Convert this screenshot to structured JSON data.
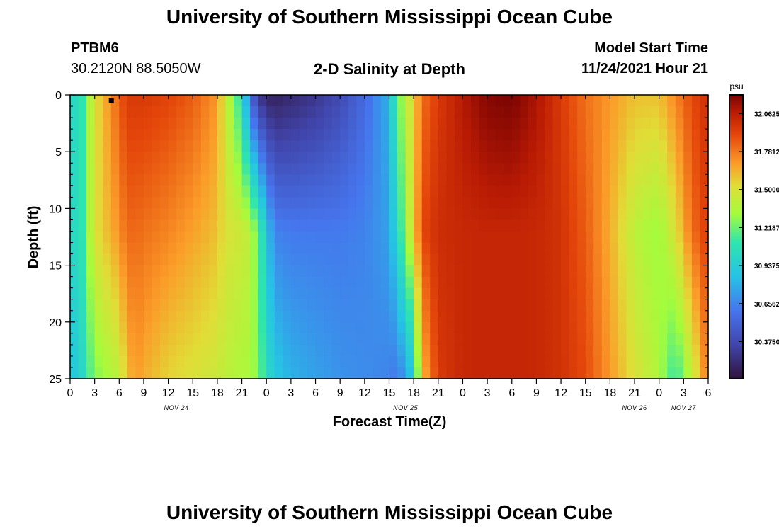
{
  "page": {
    "title": "University of Southern Mississippi Ocean Cube",
    "footer_title": "University of Southern Mississippi Ocean Cube",
    "station": {
      "id": "PTBM6",
      "coords": "30.2120N  88.5050W"
    },
    "subtitle": "2-D Salinity at Depth",
    "model_start": {
      "label": "Model Start Time",
      "value": "11/24/2021 Hour 21"
    }
  },
  "chart_data": {
    "type": "heatmap",
    "title": "2-D Salinity at Depth",
    "xlabel": "Forecast Time(Z)",
    "ylabel": "Depth (ft)",
    "y_ticks": [
      "0",
      "5",
      "10",
      "15",
      "20",
      "25"
    ],
    "ylim": [
      25,
      0
    ],
    "x_tick_labels": [
      "0",
      "3",
      "6",
      "9",
      "12",
      "15",
      "18",
      "21",
      "0",
      "3",
      "6",
      "9",
      "12",
      "15",
      "18",
      "21",
      "0",
      "3",
      "6",
      "9",
      "12",
      "15",
      "18",
      "21",
      "0",
      "3",
      "6"
    ],
    "date_labels": [
      "NOV 24",
      "NOV 25",
      "NOV 26",
      "NOV 27"
    ],
    "x_range_hours": [
      0,
      78
    ],
    "colorbar": {
      "unit": "psu",
      "ticks": [
        "32.0625",
        "31.7812",
        "31.5000",
        "31.2187",
        "30.9375",
        "30.6562",
        "30.3750"
      ],
      "range": [
        30.1,
        32.2
      ]
    },
    "time_hours": [
      0,
      1,
      2,
      3,
      6,
      7,
      8,
      9,
      12,
      15,
      18,
      19,
      21,
      22,
      23,
      24,
      25,
      27,
      30,
      33,
      36,
      39,
      40,
      42,
      43,
      45,
      48,
      51,
      54,
      57,
      60,
      63,
      66,
      69,
      72,
      74,
      76,
      78
    ],
    "salinity_surface": [
      31.1,
      30.95,
      31.25,
      31.5,
      31.85,
      31.95,
      31.95,
      31.95,
      31.92,
      31.85,
      31.7,
      31.45,
      31.05,
      30.55,
      30.3,
      30.2,
      30.18,
      30.22,
      30.28,
      30.38,
      30.55,
      30.8,
      31.2,
      31.55,
      31.8,
      31.95,
      32.08,
      32.18,
      32.2,
      32.1,
      31.95,
      31.8,
      31.7,
      31.6,
      31.6,
      31.75,
      31.9,
      32.0
    ],
    "salinity_mid": [
      31.1,
      30.95,
      31.25,
      31.5,
      31.72,
      31.82,
      31.82,
      31.8,
      31.75,
      31.68,
      31.6,
      31.5,
      31.45,
      31.4,
      31.2,
      30.9,
      30.65,
      30.62,
      30.62,
      30.62,
      30.65,
      30.75,
      31.0,
      31.55,
      31.9,
      32.0,
      32.02,
      32.03,
      32.03,
      32.02,
      31.98,
      31.85,
      31.65,
      31.4,
      31.3,
      31.5,
      31.8,
      31.95
    ],
    "salinity_bottom": [
      30.9,
      30.9,
      31.1,
      31.25,
      31.4,
      31.6,
      31.7,
      31.65,
      31.55,
      31.5,
      31.45,
      31.4,
      31.35,
      31.35,
      31.25,
      31.05,
      30.9,
      30.8,
      30.75,
      30.7,
      30.68,
      30.65,
      30.6,
      30.9,
      31.6,
      31.95,
      32.02,
      32.03,
      32.03,
      32.02,
      31.98,
      31.9,
      31.7,
      31.5,
      31.35,
      31.1,
      31.4,
      31.8
    ],
    "marker": {
      "time_hours": 5,
      "depth_ft": 0.3
    }
  }
}
